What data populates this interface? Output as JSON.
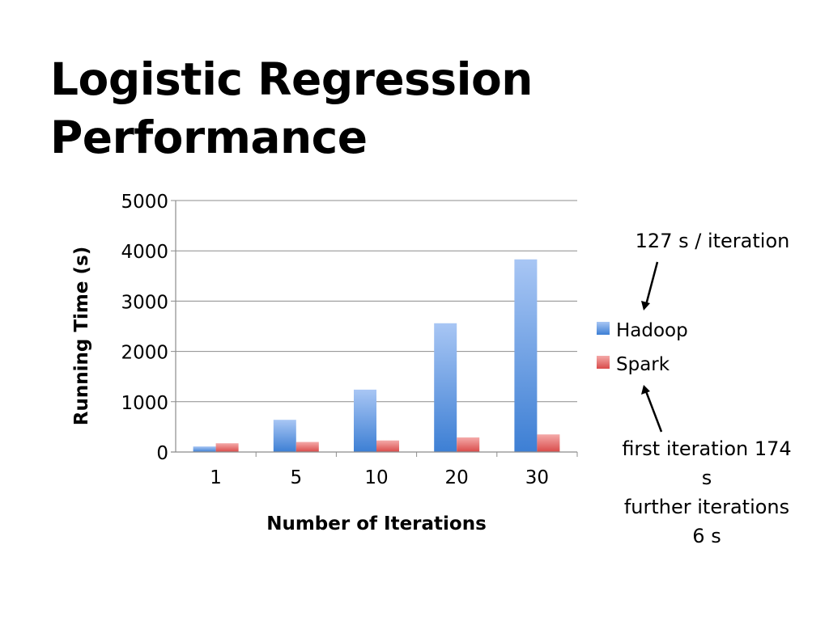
{
  "slide": {
    "title": "Logistic Regression Performance"
  },
  "annotations": {
    "top": "127 s / iteration",
    "bottom_lines": [
      "first iteration 174",
      "s",
      "further iterations",
      "6 s"
    ]
  },
  "colors": {
    "hadoop_top": "#a8c6f4",
    "hadoop_bottom": "#3d7fd4",
    "spark_top": "#f4aaa9",
    "spark_bottom": "#d94b4a",
    "grid": "#8c8c8c"
  },
  "chart_data": {
    "type": "bar",
    "categories": [
      "1",
      "5",
      "10",
      "20",
      "30"
    ],
    "series": [
      {
        "name": "Hadoop",
        "values": [
          110,
          640,
          1240,
          2560,
          3830
        ]
      },
      {
        "name": "Spark",
        "values": [
          174,
          200,
          230,
          290,
          350
        ]
      }
    ],
    "xlabel": "Number of Iterations",
    "ylabel": "Running Time (s)",
    "ylim": [
      0,
      5000
    ],
    "yticks": [
      "0",
      "1000",
      "2000",
      "3000",
      "4000",
      "5000"
    ],
    "grid": true,
    "legend": "right"
  }
}
